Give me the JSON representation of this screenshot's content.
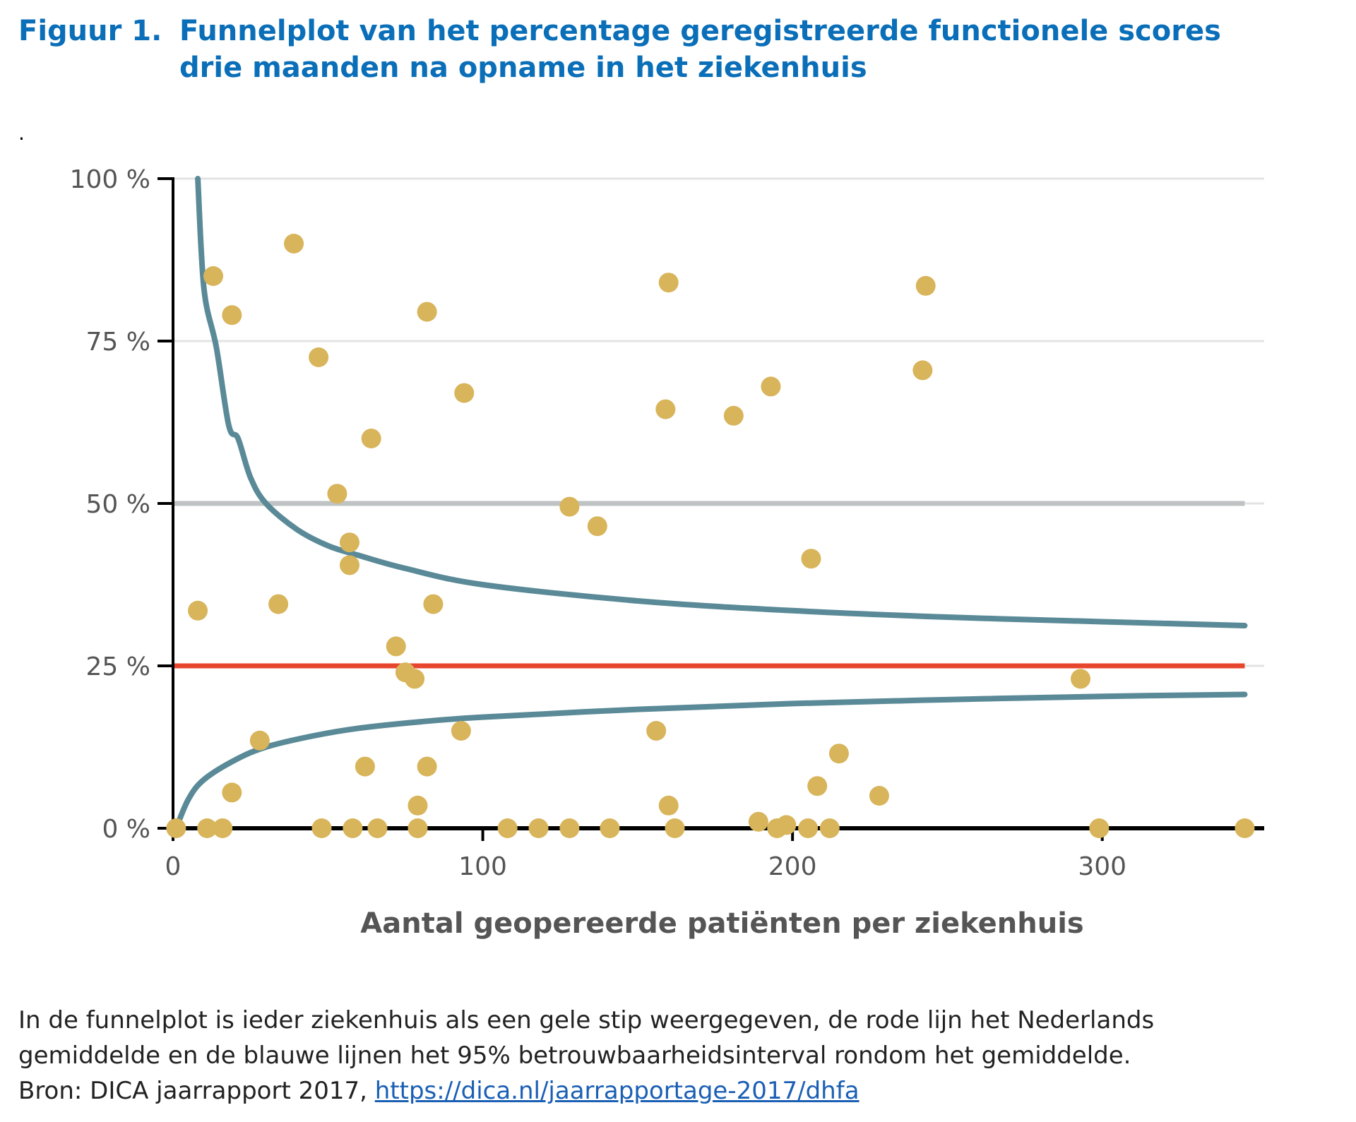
{
  "figure": {
    "title_prefix": "Figuur 1.",
    "title_line1": "Funnelplot van het percentage geregistreerde functionele scores",
    "title_line2": "drie maanden na opname in het ziekenhuis",
    "marker": "."
  },
  "caption": {
    "line1": "In de funnelplot is ieder ziekenhuis als een gele stip weergegeven, de rode lijn het Nederlands",
    "line2": "gemiddelde en de blauwe lijnen het 95% betrouwbaarheidsinterval rondom het gemiddelde.",
    "source_prefix": "Bron: DICA jaarrapport 2017,",
    "source_link": "https://dica.nl/jaarrapportage-2017/dhfa"
  },
  "colors": {
    "title": "#0a6fb8",
    "dots": "#d8b45a",
    "ci_lines": "#5a8a97",
    "mean_line": "#e8452e",
    "ref_line": "#bfc3c3",
    "grid": "#e3e3e3",
    "axis": "#000000"
  },
  "chart_data": {
    "type": "scatter",
    "xlabel": "Aantal geopereerde patiënten per ziekenhuis",
    "ylabel": "",
    "xlim": [
      0,
      350
    ],
    "ylim": [
      0,
      100
    ],
    "x_ticks": [
      0,
      100,
      200,
      300
    ],
    "x_tick_labels": [
      "0",
      "100",
      "200",
      "300"
    ],
    "y_ticks": [
      0,
      25,
      50,
      75,
      100
    ],
    "y_tick_labels": [
      "0 %",
      "25 %",
      "50 %",
      "75 %",
      "100 %"
    ],
    "grid": "horizontal",
    "mean_line": 25,
    "reference_line": 50,
    "points": [
      [
        1,
        0
      ],
      [
        11,
        0
      ],
      [
        16,
        0
      ],
      [
        8,
        33.5
      ],
      [
        13,
        85
      ],
      [
        19,
        79
      ],
      [
        19,
        5.5
      ],
      [
        28,
        13.5
      ],
      [
        34,
        34.5
      ],
      [
        39,
        90
      ],
      [
        48,
        0
      ],
      [
        47,
        72.5
      ],
      [
        53,
        51.5
      ],
      [
        57,
        44
      ],
      [
        57,
        40.5
      ],
      [
        58,
        0
      ],
      [
        62,
        9.5
      ],
      [
        64,
        60
      ],
      [
        66,
        0
      ],
      [
        72,
        28
      ],
      [
        75,
        24
      ],
      [
        78,
        23
      ],
      [
        79,
        0
      ],
      [
        79,
        3.5
      ],
      [
        82,
        79.5
      ],
      [
        82,
        9.5
      ],
      [
        84,
        34.5
      ],
      [
        93,
        15
      ],
      [
        94,
        67
      ],
      [
        108,
        0
      ],
      [
        118,
        0
      ],
      [
        128,
        49.5
      ],
      [
        128,
        0
      ],
      [
        137,
        46.5
      ],
      [
        141,
        0
      ],
      [
        156,
        15
      ],
      [
        160,
        84
      ],
      [
        159,
        64.5
      ],
      [
        160,
        3.5
      ],
      [
        162,
        0
      ],
      [
        181,
        63.5
      ],
      [
        189,
        1
      ],
      [
        193,
        68
      ],
      [
        195,
        0
      ],
      [
        198,
        0.5
      ],
      [
        205,
        0
      ],
      [
        206,
        41.5
      ],
      [
        208,
        6.5
      ],
      [
        212,
        0
      ],
      [
        215,
        11.5
      ],
      [
        228,
        5
      ],
      [
        242,
        70.5
      ],
      [
        243,
        83.5
      ],
      [
        293,
        23
      ],
      [
        299,
        0
      ],
      [
        346,
        0
      ]
    ],
    "ci_upper": [
      [
        8,
        100
      ],
      [
        10,
        83
      ],
      [
        14,
        74
      ],
      [
        18,
        62
      ],
      [
        21,
        60
      ],
      [
        25,
        54
      ],
      [
        30,
        50
      ],
      [
        40,
        46
      ],
      [
        50,
        43.5
      ],
      [
        60,
        42
      ],
      [
        75,
        40
      ],
      [
        100,
        37.5
      ],
      [
        150,
        35
      ],
      [
        200,
        33.5
      ],
      [
        250,
        32.5
      ],
      [
        300,
        31.8
      ],
      [
        346,
        31.2
      ]
    ],
    "ci_lower": [
      [
        1,
        0
      ],
      [
        5,
        4.5
      ],
      [
        10,
        7.5
      ],
      [
        20,
        10.5
      ],
      [
        30,
        12.5
      ],
      [
        45,
        14.2
      ],
      [
        60,
        15.4
      ],
      [
        80,
        16.4
      ],
      [
        100,
        17.1
      ],
      [
        150,
        18.3
      ],
      [
        200,
        19.2
      ],
      [
        250,
        19.8
      ],
      [
        300,
        20.3
      ],
      [
        346,
        20.6
      ]
    ]
  }
}
